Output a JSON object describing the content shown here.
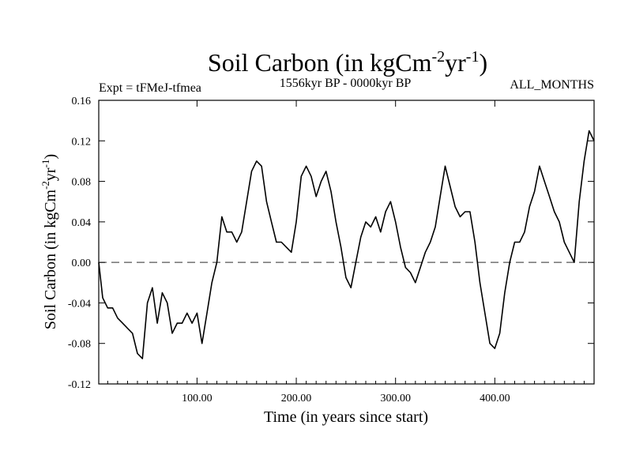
{
  "chart_data": {
    "type": "line",
    "title_main": "Soil Carbon (in kgCm",
    "title_sup1": "-2",
    "title_mid": "yr",
    "title_sup2": "-1",
    "title_end": ")",
    "subtitle_left": "Expt = tFMeJ-tfmea",
    "subtitle_center": "1556kyr BP - 0000kyr BP",
    "subtitle_right": "ALL_MONTHS",
    "xlabel": "Time (in years since start)",
    "ylabel_main": "Soil Carbon (in kgCm",
    "ylabel_sup1": "-2",
    "ylabel_mid": "yr",
    "ylabel_sup2": "-1",
    "ylabel_end": ")",
    "xlim": [
      1,
      500
    ],
    "ylim": [
      -0.12,
      0.16
    ],
    "xticks": [
      100,
      200,
      300,
      400
    ],
    "xtick_labels": [
      "100.00",
      "200.00",
      "300.00",
      "400.00"
    ],
    "yticks": [
      -0.12,
      -0.08,
      -0.04,
      0.0,
      0.04,
      0.08,
      0.12,
      0.16
    ],
    "ytick_labels": [
      "-0.12",
      "-0.08",
      "-0.04",
      "0.00",
      "0.04",
      "0.08",
      "0.12",
      "0.16"
    ],
    "reference_line": 0.0,
    "series": [
      {
        "name": "Soil Carbon",
        "x": [
          1,
          5,
          10,
          15,
          20,
          25,
          30,
          35,
          40,
          45,
          50,
          55,
          60,
          65,
          70,
          75,
          80,
          85,
          90,
          95,
          100,
          105,
          110,
          115,
          120,
          125,
          130,
          135,
          140,
          145,
          150,
          155,
          160,
          165,
          170,
          175,
          180,
          185,
          190,
          195,
          200,
          205,
          210,
          215,
          220,
          225,
          230,
          235,
          240,
          245,
          250,
          255,
          260,
          265,
          270,
          275,
          280,
          285,
          290,
          295,
          300,
          305,
          310,
          315,
          320,
          325,
          330,
          335,
          340,
          345,
          350,
          355,
          360,
          365,
          370,
          375,
          380,
          385,
          390,
          395,
          400,
          405,
          410,
          415,
          420,
          425,
          430,
          435,
          440,
          445,
          450,
          455,
          460,
          465,
          470,
          475,
          480,
          485,
          490,
          495,
          500
        ],
        "y": [
          0.0,
          -0.035,
          -0.045,
          -0.045,
          -0.055,
          -0.06,
          -0.065,
          -0.07,
          -0.09,
          -0.095,
          -0.04,
          -0.025,
          -0.06,
          -0.03,
          -0.04,
          -0.07,
          -0.06,
          -0.06,
          -0.05,
          -0.06,
          -0.05,
          -0.08,
          -0.05,
          -0.02,
          0.0,
          0.045,
          0.03,
          0.03,
          0.02,
          0.03,
          0.06,
          0.09,
          0.1,
          0.095,
          0.06,
          0.04,
          0.02,
          0.02,
          0.015,
          0.01,
          0.04,
          0.085,
          0.095,
          0.085,
          0.065,
          0.08,
          0.09,
          0.07,
          0.04,
          0.015,
          -0.015,
          -0.025,
          0.0,
          0.025,
          0.04,
          0.035,
          0.045,
          0.03,
          0.05,
          0.06,
          0.04,
          0.015,
          -0.005,
          -0.01,
          -0.02,
          -0.005,
          0.01,
          0.02,
          0.035,
          0.065,
          0.095,
          0.075,
          0.055,
          0.045,
          0.05,
          0.05,
          0.02,
          -0.02,
          -0.05,
          -0.08,
          -0.085,
          -0.07,
          -0.03,
          0.0,
          0.02,
          0.02,
          0.03,
          0.055,
          0.07,
          0.095,
          0.08,
          0.065,
          0.05,
          0.04,
          0.02,
          0.01,
          0.0,
          0.06,
          0.1,
          0.13,
          0.12
        ]
      }
    ]
  }
}
